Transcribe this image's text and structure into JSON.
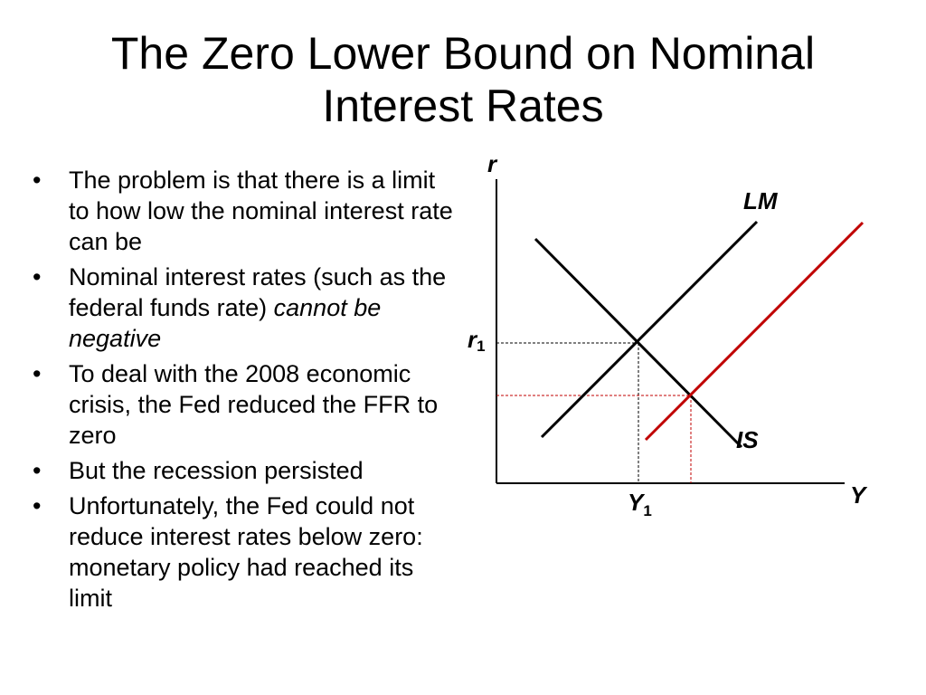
{
  "slide": {
    "title_line1": "The Zero Lower Bound on Nominal",
    "title_line2": "Interest Rates"
  },
  "bullets": [
    {
      "text": "The problem is that there is a limit to how low the nominal interest rate can be"
    },
    {
      "text": "Nominal interest rates (such as the federal funds rate)",
      "emphasis": "cannot be negative"
    },
    {
      "text": "To deal with the 2008 economic crisis, the Fed reduced the FFR to zero"
    },
    {
      "text": "But the recession persisted"
    },
    {
      "text": "Unfortunately, the Fed could not reduce interest rates below zero: monetary policy had reached its limit"
    }
  ],
  "bullet_symbol": "•",
  "diagram": {
    "y_axis_label": "r",
    "x_axis_label": "Y",
    "lm_label": "LM",
    "is_label": "IS",
    "r_level_label": "r",
    "r_level_subscript": "1",
    "y_level_label": "Y",
    "y_level_subscript": "1",
    "colors": {
      "axis": "#000000",
      "curves": "#000000",
      "shifted_curve": "#c00000",
      "guide": "#000000",
      "shifted_guide": "#c00000"
    }
  }
}
